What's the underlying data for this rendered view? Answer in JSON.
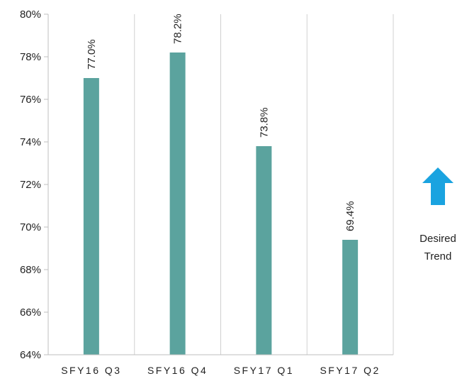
{
  "chart_data": {
    "type": "bar",
    "categories": [
      "SFY16 Q3",
      "SFY16 Q4",
      "SFY17 Q1",
      "SFY17 Q2"
    ],
    "values": [
      77.0,
      78.2,
      73.8,
      69.4
    ],
    "data_labels": [
      "77.0%",
      "78.2%",
      "73.8%",
      "69.4%"
    ],
    "ylim": [
      64,
      80
    ],
    "y_ticks": [
      64,
      66,
      68,
      70,
      72,
      74,
      76,
      78,
      80
    ],
    "y_tick_labels": [
      "64%",
      "66%",
      "68%",
      "70%",
      "72%",
      "74%",
      "76%",
      "78%",
      "80%"
    ],
    "grid": "vertical separators between categories",
    "legend": "none",
    "bar_color": "#5ba39e"
  },
  "annotation": {
    "line1": "Desired",
    "line2": "Trend",
    "arrow": "up-arrow-icon",
    "arrow_color": "#1aa3e0"
  }
}
